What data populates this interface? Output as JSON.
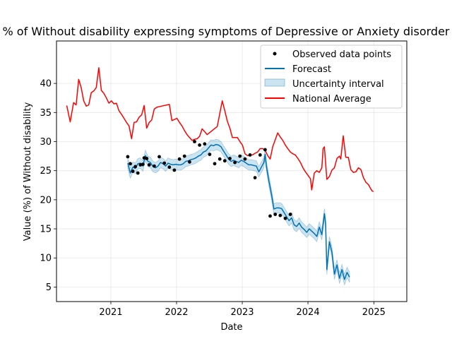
{
  "chart_data": {
    "type": "line",
    "title": "% of Without disability expressing symptoms of Depressive or Anxiety disorder",
    "xlabel": "Date",
    "ylabel": "Value (%) of Without disability",
    "xlim": [
      "2020-03-05",
      "2025-07-03"
    ],
    "ylim": [
      2.5,
      47.3
    ],
    "xticks": [
      "2021",
      "2022",
      "2023",
      "2024",
      "2025"
    ],
    "yticks": [
      5,
      10,
      15,
      20,
      25,
      30,
      35,
      40
    ],
    "grid": true,
    "legend_position": "top-right",
    "legend": [
      "Observed data points",
      "Forecast",
      "Uncertainty interval",
      "National Average"
    ],
    "colors": {
      "observed": "#000000",
      "forecast": "#0072B2",
      "interval": "#0072B2",
      "national": "#ff0000"
    },
    "series": [
      {
        "name": "National Average",
        "points": [
          [
            "2020-05-01",
            36.2
          ],
          [
            "2020-05-20",
            33.4
          ],
          [
            "2020-06-08",
            36.7
          ],
          [
            "2020-06-22",
            36.3
          ],
          [
            "2020-07-06",
            40.7
          ],
          [
            "2020-07-20",
            39.3
          ],
          [
            "2020-08-03",
            37.0
          ],
          [
            "2020-08-17",
            36.1
          ],
          [
            "2020-08-31",
            36.3
          ],
          [
            "2020-09-14",
            38.4
          ],
          [
            "2020-09-28",
            38.7
          ],
          [
            "2020-10-12",
            39.3
          ],
          [
            "2020-10-26",
            42.7
          ],
          [
            "2020-11-09",
            38.8
          ],
          [
            "2020-11-23",
            38.3
          ],
          [
            "2020-12-07",
            37.5
          ],
          [
            "2020-12-21",
            36.6
          ],
          [
            "2021-01-04",
            37.0
          ],
          [
            "2021-01-18",
            36.5
          ],
          [
            "2021-02-01",
            36.6
          ],
          [
            "2021-02-15",
            35.3
          ],
          [
            "2021-03-01",
            34.7
          ],
          [
            "2021-03-15",
            34.0
          ],
          [
            "2021-03-29",
            33.3
          ],
          [
            "2021-04-12",
            32.7
          ],
          [
            "2021-04-26",
            30.5
          ],
          [
            "2021-05-10",
            33.3
          ],
          [
            "2021-05-24",
            33.4
          ],
          [
            "2021-06-07",
            34.2
          ],
          [
            "2021-06-21",
            34.6
          ],
          [
            "2021-07-05",
            36.2
          ],
          [
            "2021-07-19",
            32.3
          ],
          [
            "2021-08-02",
            33.3
          ],
          [
            "2021-08-16",
            33.7
          ],
          [
            "2021-08-30",
            35.6
          ],
          [
            "2021-09-13",
            35.9
          ],
          [
            "2021-10-11",
            36.1
          ],
          [
            "2021-11-08",
            36.3
          ],
          [
            "2021-11-22",
            36.4
          ],
          [
            "2021-12-06",
            33.6
          ],
          [
            "2021-12-20",
            33.8
          ],
          [
            "2022-01-03",
            34.0
          ],
          [
            "2022-01-17",
            33.3
          ],
          [
            "2022-01-31",
            32.7
          ],
          [
            "2022-02-14",
            31.9
          ],
          [
            "2022-02-28",
            31.2
          ],
          [
            "2022-03-14",
            30.7
          ],
          [
            "2022-03-28",
            30.2
          ],
          [
            "2022-04-11",
            30.4
          ],
          [
            "2022-04-25",
            30.5
          ],
          [
            "2022-05-09",
            30.9
          ],
          [
            "2022-05-23",
            32.2
          ],
          [
            "2022-06-06",
            31.7
          ],
          [
            "2022-06-20",
            31.2
          ],
          [
            "2022-07-18",
            31.9
          ],
          [
            "2022-08-15",
            32.6
          ],
          [
            "2022-09-12",
            37.0
          ],
          [
            "2022-09-26",
            35.3
          ],
          [
            "2022-10-10",
            33.5
          ],
          [
            "2022-10-24",
            32.3
          ],
          [
            "2022-11-07",
            30.7
          ],
          [
            "2022-11-21",
            30.7
          ],
          [
            "2022-12-05",
            30.7
          ],
          [
            "2022-12-19",
            30.0
          ],
          [
            "2023-01-02",
            29.4
          ],
          [
            "2023-01-16",
            27.9
          ],
          [
            "2023-01-30",
            27.6
          ],
          [
            "2023-02-13",
            27.7
          ],
          [
            "2023-02-27",
            27.7
          ],
          [
            "2023-03-13",
            28.0
          ],
          [
            "2023-03-27",
            28.2
          ],
          [
            "2023-04-10",
            28.8
          ],
          [
            "2023-04-24",
            28.8
          ],
          [
            "2023-05-08",
            28.5
          ],
          [
            "2023-05-22",
            27.6
          ],
          [
            "2023-06-05",
            27.0
          ],
          [
            "2023-06-19",
            29.1
          ],
          [
            "2023-07-03",
            30.3
          ],
          [
            "2023-07-17",
            31.5
          ],
          [
            "2023-07-31",
            30.8
          ],
          [
            "2023-08-14",
            30.2
          ],
          [
            "2023-08-28",
            29.4
          ],
          [
            "2023-09-11",
            28.8
          ],
          [
            "2023-09-25",
            28.2
          ],
          [
            "2023-10-09",
            27.9
          ],
          [
            "2023-10-23",
            27.7
          ],
          [
            "2023-11-06",
            27.1
          ],
          [
            "2023-11-20",
            26.4
          ],
          [
            "2023-12-04",
            25.5
          ],
          [
            "2023-12-18",
            24.8
          ],
          [
            "2024-01-01",
            24.2
          ],
          [
            "2024-01-15",
            23.6
          ],
          [
            "2024-01-22",
            21.7
          ],
          [
            "2024-02-05",
            24.6
          ],
          [
            "2024-02-19",
            25.0
          ],
          [
            "2024-03-04",
            24.7
          ],
          [
            "2024-03-18",
            25.5
          ],
          [
            "2024-03-25",
            28.8
          ],
          [
            "2024-04-01",
            29.1
          ],
          [
            "2024-04-15",
            23.5
          ],
          [
            "2024-04-29",
            24.0
          ],
          [
            "2024-05-13",
            25.1
          ],
          [
            "2024-05-27",
            25.5
          ],
          [
            "2024-06-10",
            27.1
          ],
          [
            "2024-06-24",
            27.5
          ],
          [
            "2024-07-01",
            27.0
          ],
          [
            "2024-07-15",
            31.0
          ],
          [
            "2024-07-29",
            27.3
          ],
          [
            "2024-08-12",
            27.3
          ],
          [
            "2024-08-26",
            25.2
          ],
          [
            "2024-09-09",
            24.7
          ],
          [
            "2024-09-23",
            24.8
          ],
          [
            "2024-10-07",
            25.5
          ],
          [
            "2024-10-21",
            25.2
          ],
          [
            "2024-11-04",
            23.8
          ],
          [
            "2024-11-18",
            23.0
          ],
          [
            "2024-12-02",
            22.6
          ],
          [
            "2024-12-16",
            21.8
          ],
          [
            "2024-12-23",
            21.5
          ],
          [
            "2024-12-30",
            21.4
          ]
        ]
      },
      {
        "name": "Forecast",
        "points": [
          [
            "2021-04-05",
            26.3
          ],
          [
            "2021-04-19",
            24.6
          ],
          [
            "2021-05-03",
            25.6
          ],
          [
            "2021-05-17",
            25.4
          ],
          [
            "2021-05-31",
            26.2
          ],
          [
            "2021-06-14",
            26.3
          ],
          [
            "2021-06-28",
            25.8
          ],
          [
            "2021-07-12",
            27.6
          ],
          [
            "2021-07-26",
            26.6
          ],
          [
            "2021-08-09",
            26.4
          ],
          [
            "2021-08-23",
            25.7
          ],
          [
            "2021-09-06",
            25.5
          ],
          [
            "2021-09-20",
            25.8
          ],
          [
            "2021-10-04",
            26.4
          ],
          [
            "2021-10-18",
            26.2
          ],
          [
            "2021-11-01",
            25.8
          ],
          [
            "2021-11-15",
            26.3
          ],
          [
            "2021-11-29",
            26.1
          ],
          [
            "2021-12-13",
            26.0
          ],
          [
            "2021-12-27",
            26.1
          ],
          [
            "2022-01-10",
            26.0
          ],
          [
            "2022-01-24",
            26.0
          ],
          [
            "2022-02-07",
            26.2
          ],
          [
            "2022-02-21",
            26.6
          ],
          [
            "2022-03-07",
            26.7
          ],
          [
            "2022-03-21",
            26.9
          ],
          [
            "2022-04-04",
            27.0
          ],
          [
            "2022-04-18",
            27.2
          ],
          [
            "2022-05-02",
            27.5
          ],
          [
            "2022-05-16",
            27.7
          ],
          [
            "2022-05-30",
            28.2
          ],
          [
            "2022-06-13",
            28.4
          ],
          [
            "2022-06-27",
            28.9
          ],
          [
            "2022-07-11",
            29.4
          ],
          [
            "2022-07-25",
            29.3
          ],
          [
            "2022-08-08",
            29.5
          ],
          [
            "2022-08-22",
            29.4
          ],
          [
            "2022-09-05",
            29.1
          ],
          [
            "2022-09-19",
            28.4
          ],
          [
            "2022-10-03",
            27.7
          ],
          [
            "2022-10-17",
            27.0
          ],
          [
            "2022-10-31",
            26.6
          ],
          [
            "2022-11-14",
            26.8
          ],
          [
            "2022-11-28",
            26.6
          ],
          [
            "2022-12-12",
            26.4
          ],
          [
            "2022-12-26",
            26.8
          ],
          [
            "2023-01-09",
            26.6
          ],
          [
            "2023-01-23",
            26.3
          ],
          [
            "2023-02-06",
            26.0
          ],
          [
            "2023-02-20",
            26.0
          ],
          [
            "2023-03-06",
            25.9
          ],
          [
            "2023-03-20",
            25.8
          ],
          [
            "2023-04-03",
            24.8
          ],
          [
            "2023-04-17",
            25.6
          ],
          [
            "2023-05-01",
            26.4
          ],
          [
            "2023-05-08",
            27.8
          ],
          [
            "2023-05-15",
            25.8
          ],
          [
            "2023-05-29",
            23.2
          ],
          [
            "2023-06-12",
            21.0
          ],
          [
            "2023-06-26",
            18.4
          ],
          [
            "2023-07-10",
            18.6
          ],
          [
            "2023-07-24",
            18.6
          ],
          [
            "2023-08-07",
            18.5
          ],
          [
            "2023-08-21",
            17.8
          ],
          [
            "2023-09-04",
            17.1
          ],
          [
            "2023-09-18",
            16.4
          ],
          [
            "2023-10-02",
            16.9
          ],
          [
            "2023-10-16",
            15.7
          ],
          [
            "2023-10-30",
            15.4
          ],
          [
            "2023-11-13",
            16.0
          ],
          [
            "2023-11-27",
            15.3
          ],
          [
            "2023-12-11",
            14.9
          ],
          [
            "2023-12-25",
            14.4
          ],
          [
            "2024-01-08",
            15.0
          ],
          [
            "2024-01-22",
            14.6
          ],
          [
            "2024-02-05",
            14.2
          ],
          [
            "2024-02-19",
            13.7
          ],
          [
            "2024-03-04",
            15.3
          ],
          [
            "2024-03-18",
            14.0
          ],
          [
            "2024-04-01",
            17.6
          ],
          [
            "2024-04-08",
            16.0
          ],
          [
            "2024-04-15",
            8.0
          ],
          [
            "2024-04-29",
            12.8
          ],
          [
            "2024-05-13",
            11.0
          ],
          [
            "2024-05-27",
            7.2
          ],
          [
            "2024-06-10",
            8.8
          ],
          [
            "2024-06-24",
            6.5
          ],
          [
            "2024-07-08",
            8.0
          ],
          [
            "2024-07-22",
            6.3
          ],
          [
            "2024-08-05",
            7.5
          ],
          [
            "2024-08-19",
            6.7
          ]
        ]
      },
      {
        "name": "Observed data points",
        "points": [
          [
            "2021-04-05",
            27.4
          ],
          [
            "2021-04-19",
            26.2
          ],
          [
            "2021-05-03",
            24.9
          ],
          [
            "2021-05-17",
            25.7
          ],
          [
            "2021-05-31",
            24.6
          ],
          [
            "2021-06-14",
            26.0
          ],
          [
            "2021-06-28",
            26.1
          ],
          [
            "2021-07-05",
            27.2
          ],
          [
            "2021-07-19",
            27.1
          ],
          [
            "2021-08-02",
            26.0
          ],
          [
            "2021-08-30",
            25.8
          ],
          [
            "2021-09-27",
            27.4
          ],
          [
            "2021-10-25",
            26.3
          ],
          [
            "2021-11-22",
            25.6
          ],
          [
            "2021-12-20",
            25.1
          ],
          [
            "2022-01-17",
            27.0
          ],
          [
            "2022-02-14",
            27.5
          ],
          [
            "2022-03-14",
            26.5
          ],
          [
            "2022-04-11",
            30.0
          ],
          [
            "2022-05-09",
            29.4
          ],
          [
            "2022-06-06",
            29.6
          ],
          [
            "2022-07-04",
            27.8
          ],
          [
            "2022-08-01",
            26.2
          ],
          [
            "2022-08-29",
            27.0
          ],
          [
            "2022-09-26",
            26.7
          ],
          [
            "2022-10-24",
            27.1
          ],
          [
            "2022-11-21",
            26.4
          ],
          [
            "2022-12-19",
            27.5
          ],
          [
            "2023-01-16",
            27.0
          ],
          [
            "2023-02-13",
            27.7
          ],
          [
            "2023-03-13",
            23.8
          ],
          [
            "2023-04-10",
            27.7
          ],
          [
            "2023-05-08",
            28.6
          ],
          [
            "2023-06-05",
            17.2
          ],
          [
            "2023-07-03",
            17.5
          ],
          [
            "2023-07-31",
            17.3
          ],
          [
            "2023-08-28",
            16.8
          ],
          [
            "2023-09-25",
            17.5
          ]
        ]
      }
    ]
  }
}
